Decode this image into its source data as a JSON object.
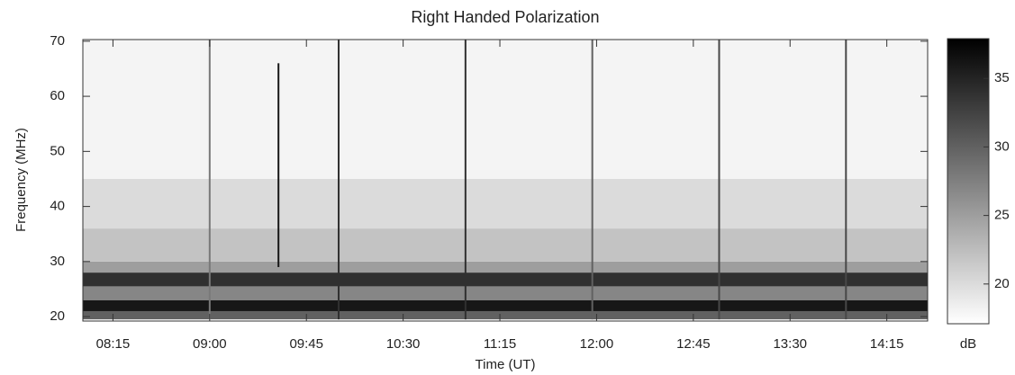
{
  "chart_data": {
    "type": "spectrogram",
    "title": "Right Handed Polarization",
    "x_label": "Time (UT)",
    "y_label": "Frequency (MHz)",
    "colorbar_label": "dB",
    "xlim": [
      481,
      874
    ],
    "xticks": [
      {
        "value": 495,
        "label": "08:15"
      },
      {
        "value": 540,
        "label": "09:00"
      },
      {
        "value": 585,
        "label": "09:45"
      },
      {
        "value": 630,
        "label": "10:30"
      },
      {
        "value": 675,
        "label": "11:15"
      },
      {
        "value": 720,
        "label": "12:00"
      },
      {
        "value": 765,
        "label": "12:45"
      },
      {
        "value": 810,
        "label": "13:30"
      },
      {
        "value": 855,
        "label": "14:15"
      }
    ],
    "ylim": [
      19.2,
      70.3
    ],
    "yticks": [
      20,
      30,
      40,
      50,
      60,
      70
    ],
    "clim": [
      17.1,
      37.9
    ],
    "cticks": [
      20,
      25,
      30,
      35
    ],
    "colormap": [
      "#ffffff",
      "#000000"
    ],
    "freq_edges": [
      19.5,
      21,
      23,
      25.5,
      28,
      30,
      36,
      45,
      70.3
    ],
    "band_db": [
      30,
      36,
      27,
      34,
      25,
      22,
      20,
      18
    ],
    "events": {
      "x": [
        540,
        572,
        600,
        659,
        718,
        777,
        836
      ],
      "f_low": [
        19.5,
        29,
        19.5,
        19.5,
        19.5,
        19.5,
        19.5
      ],
      "f_high": [
        70.3,
        66,
        70.3,
        70.3,
        70.3,
        70.3,
        70.3
      ],
      "db": [
        28,
        36,
        34,
        34,
        30,
        32,
        32
      ]
    }
  }
}
